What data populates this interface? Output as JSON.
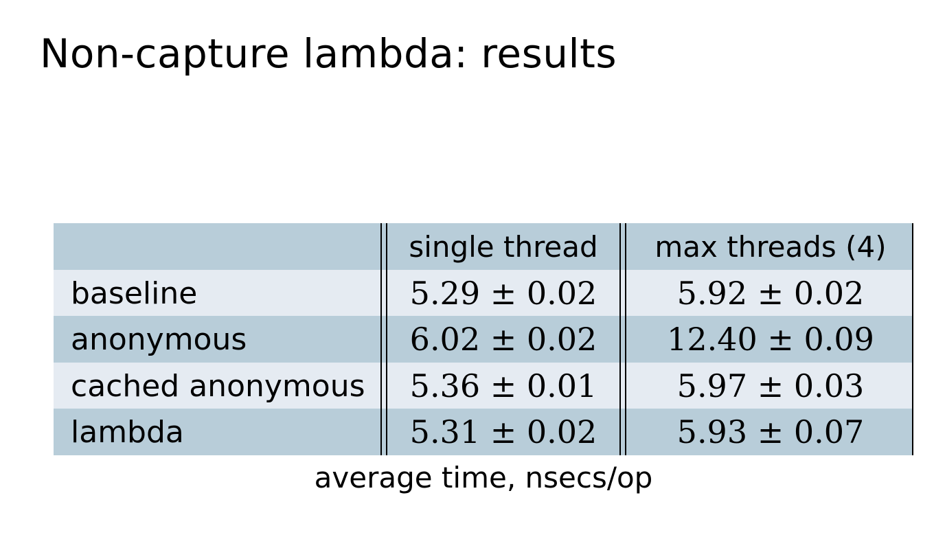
{
  "slide": {
    "title": "Non-capture lambda: results"
  },
  "table": {
    "headers": [
      "",
      "single thread",
      "max threads (4)"
    ],
    "rows": [
      {
        "label": "baseline",
        "single_thread": "5.29 ± 0.02",
        "max_threads": "5.92 ± 0.02"
      },
      {
        "label": "anonymous",
        "single_thread": "6.02 ± 0.02",
        "max_threads": "12.40 ± 0.09"
      },
      {
        "label": "cached anonymous",
        "single_thread": "5.36 ± 0.01",
        "max_threads": "5.97 ± 0.03"
      },
      {
        "label": "lambda",
        "single_thread": "5.31 ± 0.02",
        "max_threads": "5.93 ± 0.07"
      }
    ],
    "caption": "average time, nsecs/op"
  },
  "colors": {
    "row_dark": "#b8cdd9",
    "row_light": "#e5ebf2",
    "rule": "#000000"
  }
}
